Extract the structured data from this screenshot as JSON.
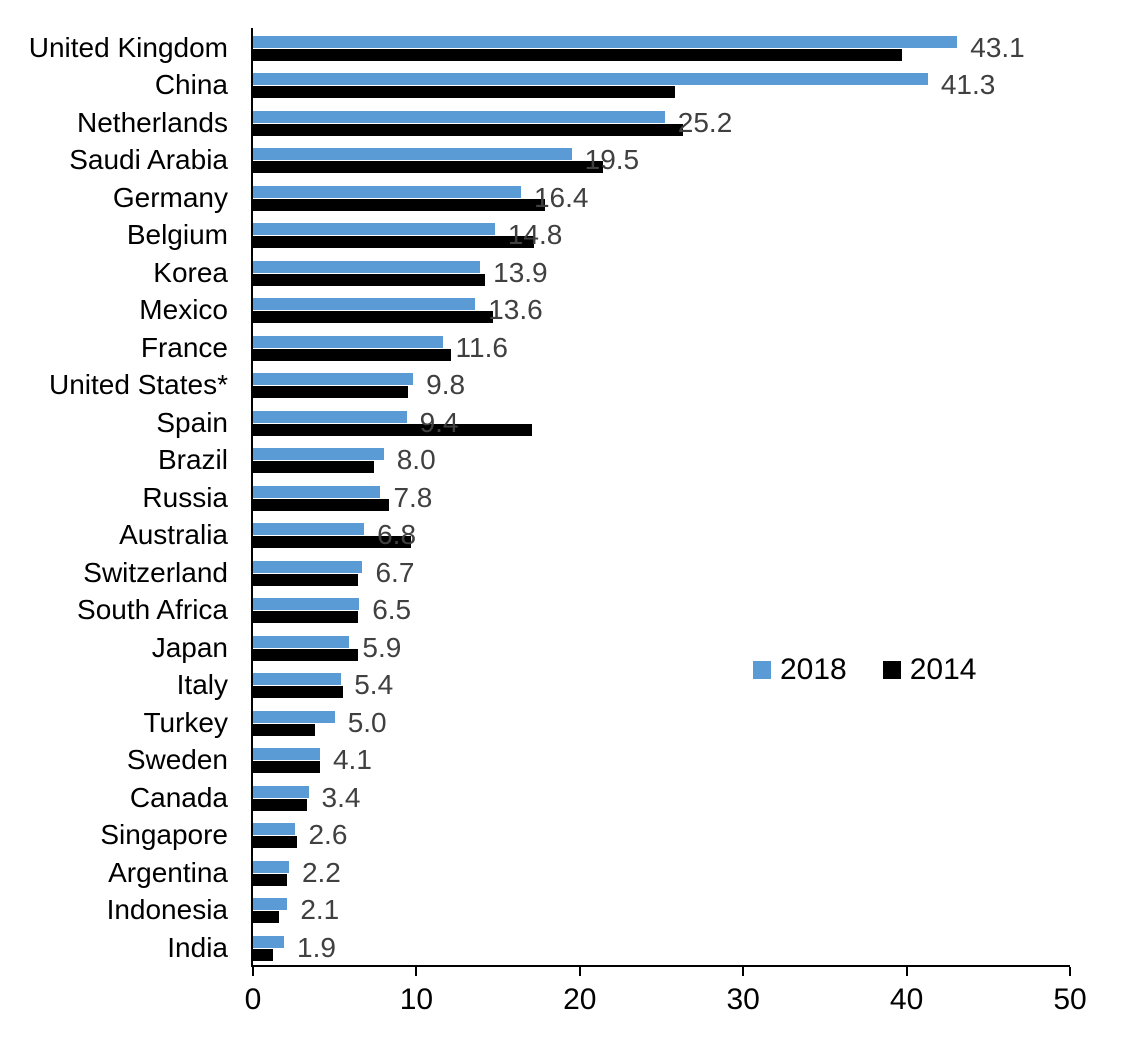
{
  "chart_data": {
    "type": "bar",
    "orientation": "horizontal",
    "title": "",
    "xlabel": "",
    "ylabel": "",
    "xlim": [
      0,
      50
    ],
    "x_ticks": [
      0,
      10,
      20,
      30,
      40,
      50
    ],
    "grid": false,
    "value_label_color": "#404040",
    "categories": [
      "United Kingdom",
      "China",
      "Netherlands",
      "Saudi Arabia",
      "Germany",
      "Belgium",
      "Korea",
      "Mexico",
      "France",
      "United States*",
      "Spain",
      "Brazil",
      "Russia",
      "Australia",
      "Switzerland",
      "South Africa",
      "Japan",
      "Italy",
      "Turkey",
      "Sweden",
      "Canada",
      "Singapore",
      "Argentina",
      "Indonesia",
      "India"
    ],
    "series": [
      {
        "name": "2018",
        "color": "#5B9BD5",
        "values": [
          43.1,
          41.3,
          25.2,
          19.5,
          16.4,
          14.8,
          13.9,
          13.6,
          11.6,
          9.8,
          9.4,
          8.0,
          7.8,
          6.8,
          6.7,
          6.5,
          5.9,
          5.4,
          5.0,
          4.1,
          3.4,
          2.6,
          2.2,
          2.1,
          1.9
        ],
        "data_labels": [
          "43.1",
          "41.3",
          "25.2",
          "19.5",
          "16.4",
          "14.8",
          "13.9",
          "13.6",
          "11.6",
          "9.8",
          "9.4",
          "8.0",
          "7.8",
          "6.8",
          "6.7",
          "6.5",
          "5.9",
          "5.4",
          "5.0",
          "4.1",
          "3.4",
          "2.6",
          "2.2",
          "2.1",
          "1.9"
        ]
      },
      {
        "name": "2014",
        "color": "#000000",
        "values": [
          39.7,
          25.8,
          26.3,
          21.4,
          17.9,
          17.2,
          14.2,
          14.7,
          12.1,
          9.5,
          17.1,
          7.4,
          8.3,
          9.7,
          6.4,
          6.4,
          6.4,
          5.5,
          3.8,
          4.1,
          3.3,
          2.7,
          2.1,
          1.6,
          1.2
        ]
      }
    ],
    "legend": {
      "position": "middle-right",
      "entries": [
        "2018",
        "2014"
      ]
    },
    "tick_labels": [
      "0",
      "10",
      "20",
      "30",
      "40",
      "50"
    ]
  }
}
